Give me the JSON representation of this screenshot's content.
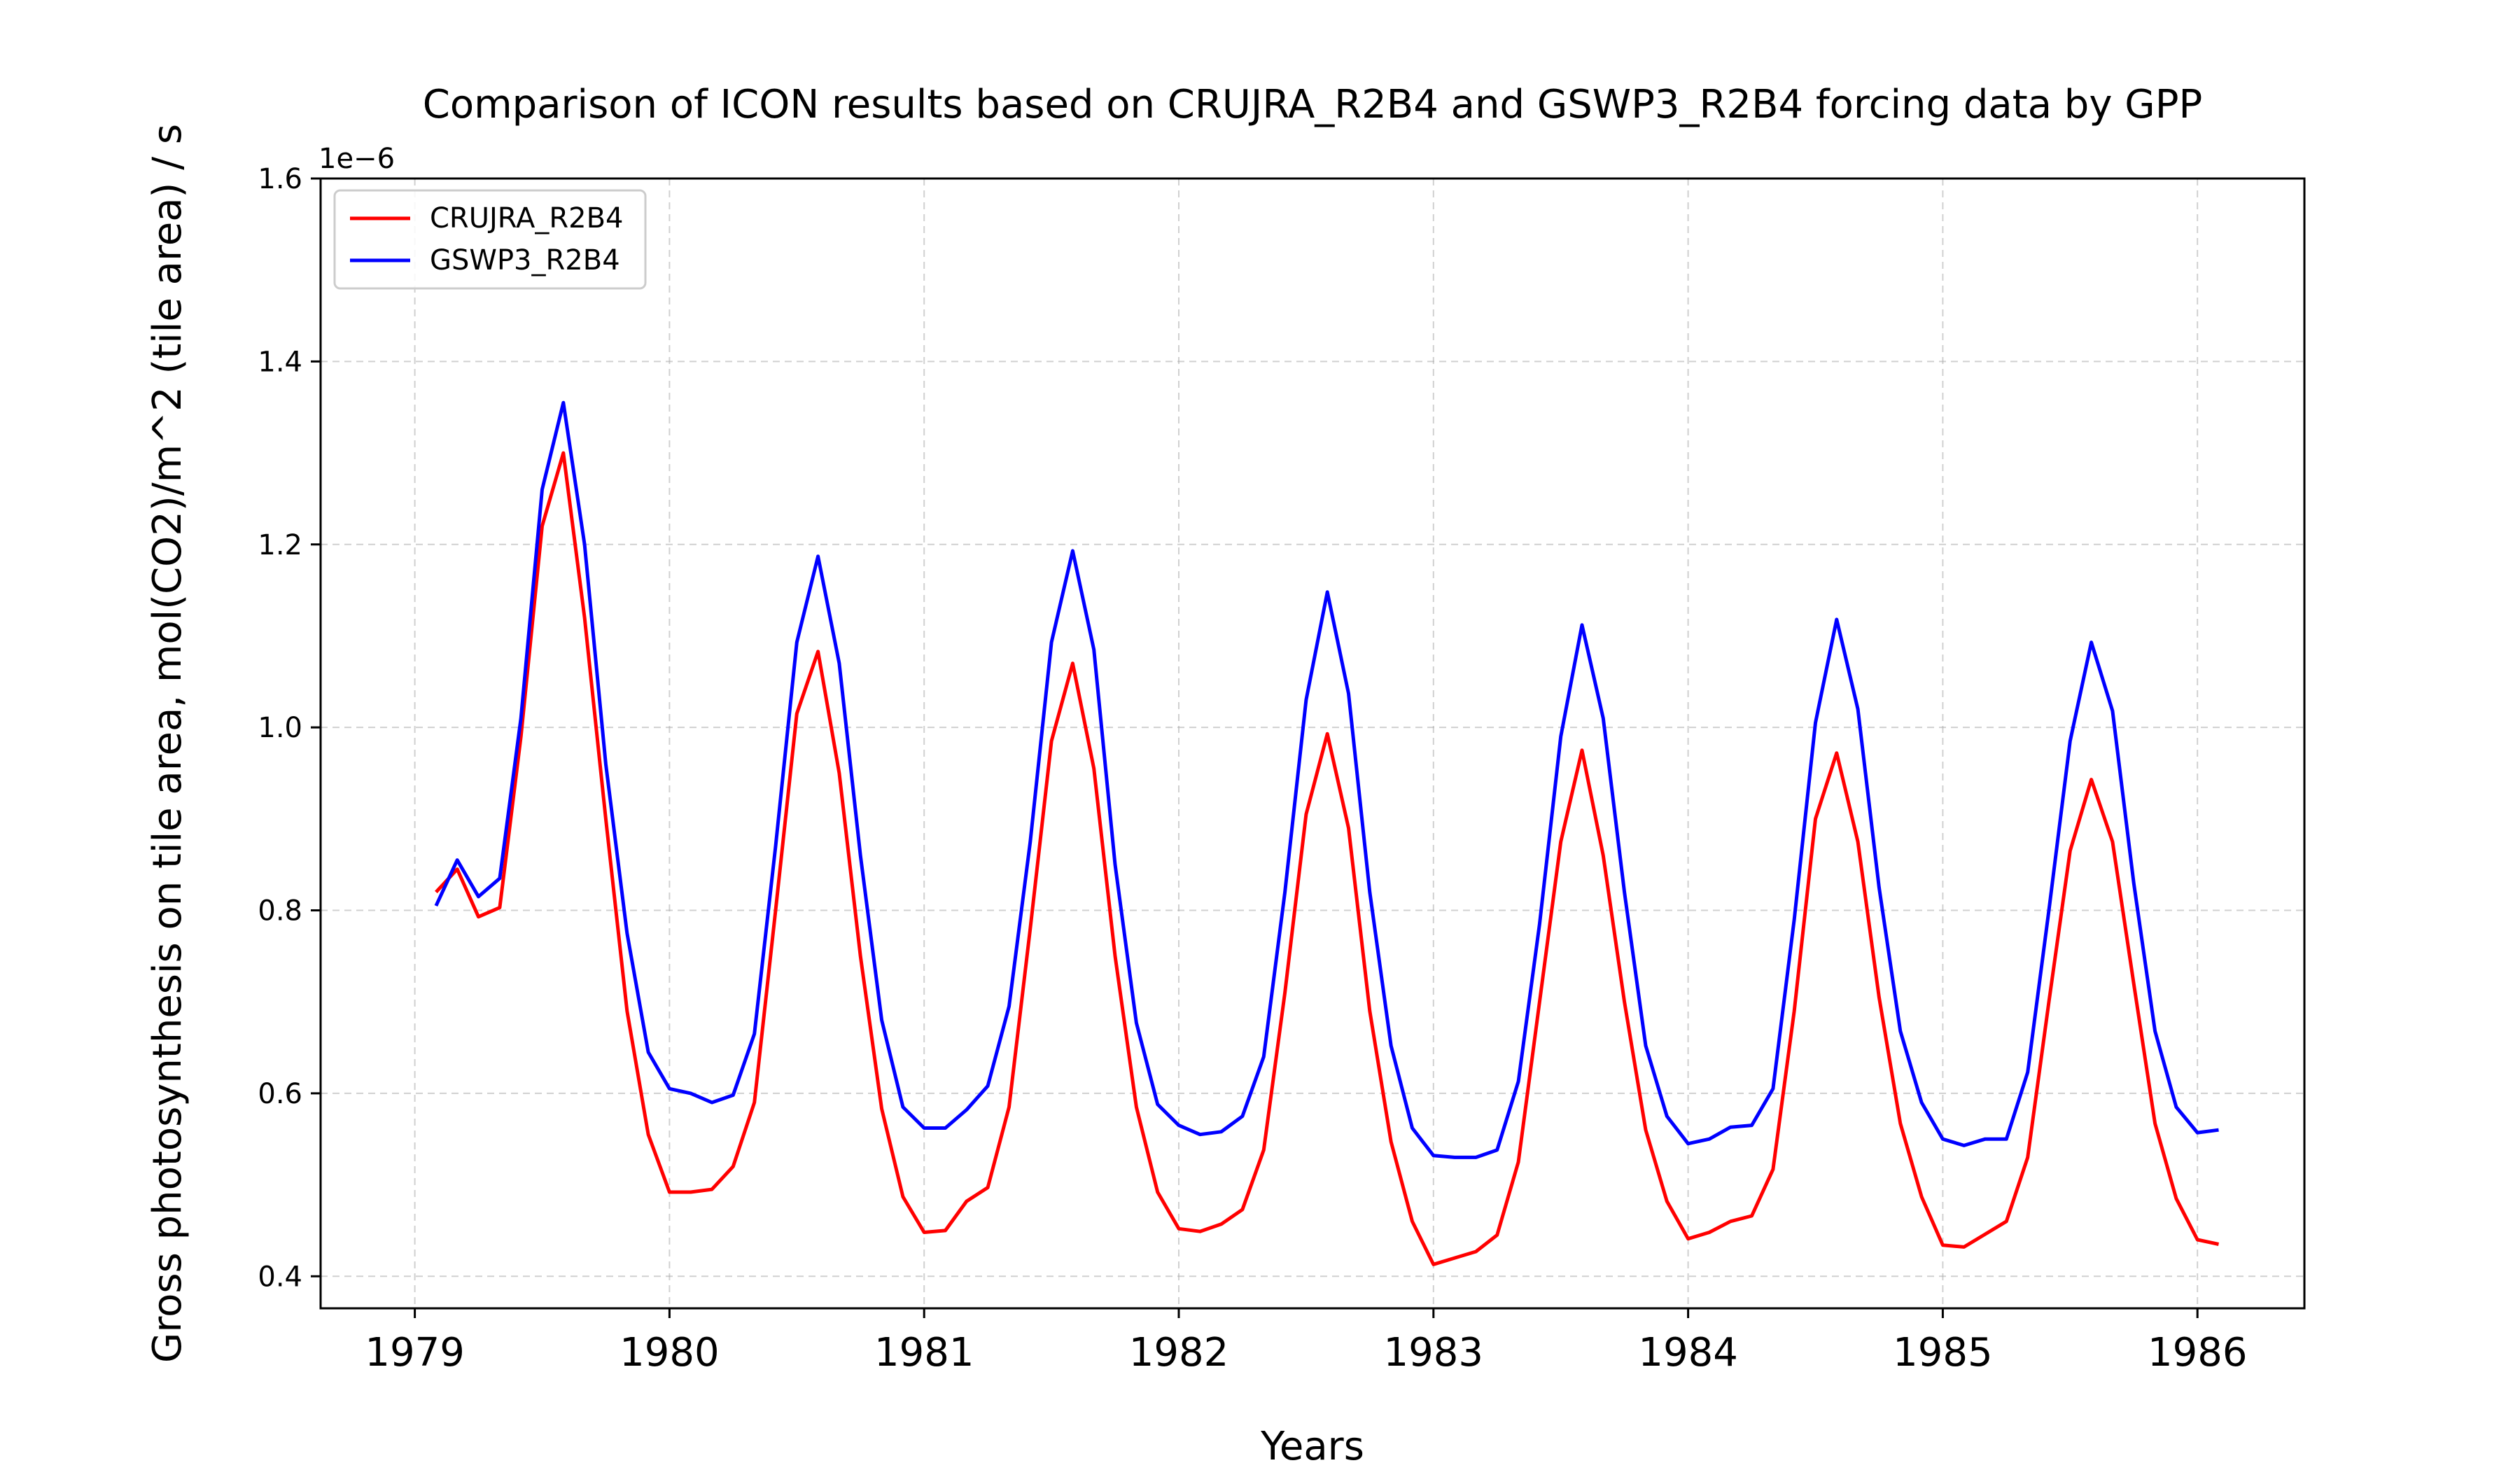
{
  "chart_data": {
    "type": "line",
    "title": "Comparison of ICON results based on CRUJRA_R2B4 and GSWP3_R2B4 forcing data by GPP",
    "xlabel": "Years",
    "ylabel": "Gross photosynthesis on tile area, mol(CO2)/m^2 (tile area) / s",
    "y_offset_label": "1e−6",
    "xlim": [
      1978.63,
      1986.42
    ],
    "ylim": [
      0.365,
      1.6
    ],
    "x_ticks": [
      1979,
      1980,
      1981,
      1982,
      1983,
      1984,
      1985,
      1986
    ],
    "x_tick_labels": [
      "1979",
      "1980",
      "1981",
      "1982",
      "1983",
      "1984",
      "1985",
      "1986"
    ],
    "y_ticks": [
      0.4,
      0.6,
      0.8,
      1.0,
      1.2,
      1.4,
      1.6
    ],
    "y_tick_labels": [
      "0.4",
      "0.6",
      "0.8",
      "1.0",
      "1.2",
      "1.4",
      "1.6"
    ],
    "grid": true,
    "legend_position": "top-left",
    "x_start": 1979.0833,
    "x_step": 0.0833333,
    "series": [
      {
        "name": "CRUJRA_R2B4",
        "color": "#ff0000",
        "values": [
          0.82,
          0.845,
          0.793,
          0.803,
          0.99,
          1.22,
          1.3,
          1.12,
          0.9,
          0.69,
          0.555,
          0.492,
          0.492,
          0.495,
          0.52,
          0.59,
          0.8,
          1.015,
          1.083,
          0.95,
          0.75,
          0.583,
          0.487,
          0.448,
          0.45,
          0.482,
          0.497,
          0.585,
          0.78,
          0.985,
          1.07,
          0.955,
          0.75,
          0.585,
          0.492,
          0.452,
          0.449,
          0.457,
          0.473,
          0.538,
          0.71,
          0.905,
          0.993,
          0.89,
          0.69,
          0.547,
          0.46,
          0.413,
          0.42,
          0.427,
          0.445,
          0.525,
          0.7,
          0.875,
          0.975,
          0.86,
          0.7,
          0.56,
          0.482,
          0.441,
          0.448,
          0.46,
          0.466,
          0.517,
          0.69,
          0.9,
          0.972,
          0.875,
          0.705,
          0.567,
          0.487,
          0.434,
          0.432,
          0.446,
          0.46,
          0.53,
          0.7,
          0.865,
          0.943,
          0.875,
          0.72,
          0.567,
          0.485,
          0.44,
          0.435
        ]
      },
      {
        "name": "GSWP3_R2B4",
        "color": "#0000ff",
        "values": [
          0.805,
          0.855,
          0.815,
          0.835,
          1.01,
          1.26,
          1.355,
          1.2,
          0.96,
          0.775,
          0.645,
          0.605,
          0.6,
          0.59,
          0.598,
          0.665,
          0.87,
          1.093,
          1.187,
          1.07,
          0.86,
          0.68,
          0.585,
          0.562,
          0.562,
          0.582,
          0.608,
          0.695,
          0.875,
          1.093,
          1.193,
          1.085,
          0.85,
          0.677,
          0.588,
          0.565,
          0.555,
          0.558,
          0.575,
          0.64,
          0.82,
          1.03,
          1.148,
          1.037,
          0.82,
          0.652,
          0.562,
          0.532,
          0.53,
          0.53,
          0.538,
          0.613,
          0.785,
          0.99,
          1.112,
          1.01,
          0.82,
          0.652,
          0.575,
          0.545,
          0.55,
          0.563,
          0.565,
          0.605,
          0.79,
          1.005,
          1.118,
          1.02,
          0.825,
          0.668,
          0.59,
          0.55,
          0.543,
          0.55,
          0.55,
          0.623,
          0.8,
          0.985,
          1.093,
          1.018,
          0.83,
          0.668,
          0.585,
          0.557,
          0.56
        ]
      }
    ]
  }
}
